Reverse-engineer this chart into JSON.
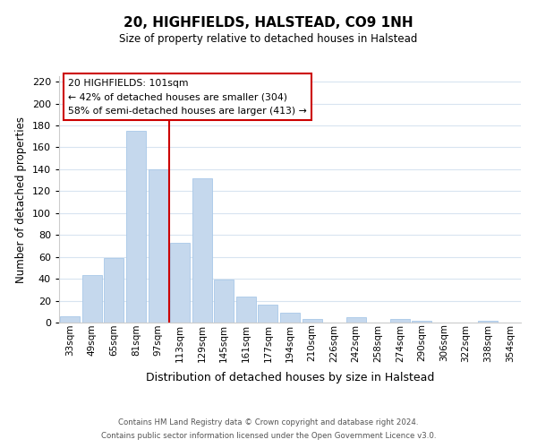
{
  "title": "20, HIGHFIELDS, HALSTEAD, CO9 1NH",
  "subtitle": "Size of property relative to detached houses in Halstead",
  "xlabel": "Distribution of detached houses by size in Halstead",
  "ylabel": "Number of detached properties",
  "bar_color": "#c5d8ed",
  "bar_edge_color": "#a8c8e8",
  "categories": [
    "33sqm",
    "49sqm",
    "65sqm",
    "81sqm",
    "97sqm",
    "113sqm",
    "129sqm",
    "145sqm",
    "161sqm",
    "177sqm",
    "194sqm",
    "210sqm",
    "226sqm",
    "242sqm",
    "258sqm",
    "274sqm",
    "290sqm",
    "306sqm",
    "322sqm",
    "338sqm",
    "354sqm"
  ],
  "values": [
    6,
    43,
    59,
    175,
    140,
    73,
    132,
    39,
    24,
    16,
    9,
    3,
    0,
    5,
    0,
    3,
    2,
    0,
    0,
    2,
    0
  ],
  "ylim": [
    0,
    225
  ],
  "yticks": [
    0,
    20,
    40,
    60,
    80,
    100,
    120,
    140,
    160,
    180,
    200,
    220
  ],
  "vline_x": 4.5,
  "vline_color": "#cc0000",
  "annotation_title": "20 HIGHFIELDS: 101sqm",
  "annotation_line1": "← 42% of detached houses are smaller (304)",
  "annotation_line2": "58% of semi-detached houses are larger (413) →",
  "annotation_box_color": "#ffffff",
  "annotation_box_edge": "#cc0000",
  "footer1": "Contains HM Land Registry data © Crown copyright and database right 2024.",
  "footer2": "Contains public sector information licensed under the Open Government Licence v3.0.",
  "background_color": "#ffffff",
  "grid_color": "#d8e4f0"
}
